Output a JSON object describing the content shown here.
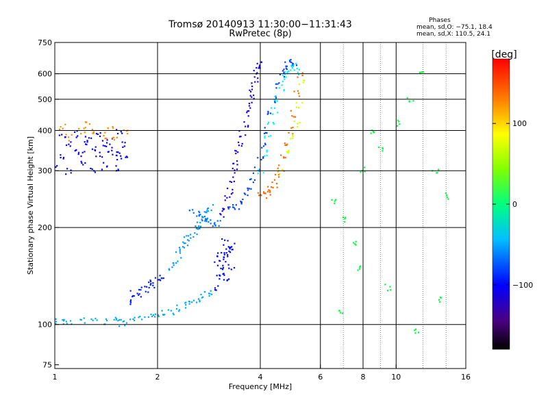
{
  "chart_data": {
    "type": "scatter",
    "title_line1": "Tromsø 20140913 11:30:00−11:31:43",
    "title_line2": "RwPretec (8p)",
    "annotation_title": "Phases",
    "annotation_o": "mean, sd,O: −75.1, 18.4",
    "annotation_x": "mean, sd,X: 110.5, 24.1",
    "xlabel": "Frequency [MHz]",
    "ylabel": "Stationary phase Virtual Height [km]",
    "x_scale": "log",
    "y_scale": "log",
    "xlim": [
      1,
      16
    ],
    "ylim": [
      73,
      750
    ],
    "x_ticks": [
      1,
      2,
      4,
      6,
      8,
      10,
      16
    ],
    "x_tick_labels": [
      "1",
      "2",
      "4",
      "6",
      "8",
      "10",
      "16"
    ],
    "x_gridlines": [
      2,
      4,
      6,
      8,
      10
    ],
    "x_minor_gridlines": [
      7,
      9,
      12,
      14
    ],
    "y_ticks": [
      75,
      100,
      200,
      300,
      400,
      500,
      600,
      750
    ],
    "y_tick_labels": [
      "75",
      "100",
      "200",
      "300",
      "400",
      "500",
      "600",
      "750"
    ],
    "y_gridlines": [
      100,
      200,
      300,
      400,
      500,
      600
    ],
    "grid": true,
    "colorbar": {
      "label": "[deg]",
      "range": [
        -180,
        180
      ],
      "ticks": [
        100,
        0,
        -100
      ],
      "tick_labels": [
        "100",
        "0",
        "−100"
      ],
      "colormap": "rainbow"
    },
    "series": [
      {
        "x": [
          1.0,
          1.05,
          1.1,
          1.2,
          1.3,
          1.4,
          1.5,
          1.55,
          1.6,
          1.7,
          1.8,
          1.9,
          2.0,
          2.1,
          2.2,
          2.3,
          2.4,
          2.5,
          2.6,
          2.7,
          2.8,
          2.9
        ],
        "y": [
          103,
          102,
          102,
          103,
          103,
          102,
          103,
          101,
          101,
          104,
          106,
          107,
          108,
          109,
          110,
          112,
          115,
          117,
          119,
          121,
          124,
          127
        ],
        "phase": [
          -60
        ]
      },
      {
        "x": [
          1.0,
          1.05,
          1.1,
          1.15,
          1.2,
          1.25,
          1.3,
          1.35,
          1.4,
          1.45,
          1.5,
          1.55,
          1.6,
          1.0,
          1.1,
          1.2,
          1.3,
          1.4,
          1.5,
          1.6,
          1.05,
          1.15,
          1.25,
          1.35,
          1.45,
          1.55
        ],
        "y": [
          350,
          330,
          360,
          345,
          340,
          370,
          355,
          335,
          365,
          350,
          330,
          340,
          360,
          310,
          300,
          320,
          300,
          310,
          305,
          330,
          380,
          390,
          375,
          385,
          370,
          395
        ],
        "phase": [
          -110
        ]
      },
      {
        "x": [
          1.0,
          1.1,
          1.2,
          1.3,
          1.4,
          1.5,
          1.6,
          1.05,
          1.25,
          1.45
        ],
        "y": [
          390,
          380,
          400,
          395,
          385,
          380,
          400,
          410,
          415,
          405
        ],
        "phase": [
          140
        ]
      },
      {
        "x": [
          1.65,
          1.75,
          1.85,
          1.95,
          2.05,
          1.7,
          1.8,
          1.9,
          2.0
        ],
        "y": [
          118,
          122,
          128,
          132,
          136,
          125,
          130,
          134,
          140
        ],
        "phase": [
          -100
        ]
      },
      {
        "x": [
          2.2,
          2.25,
          2.3,
          2.35,
          2.4,
          2.45,
          2.5,
          2.55,
          2.6,
          2.65,
          2.7,
          2.75,
          2.8,
          2.85
        ],
        "y": [
          150,
          158,
          165,
          172,
          178,
          185,
          190,
          195,
          200,
          206,
          212,
          218,
          224,
          230
        ],
        "phase": [
          -65
        ]
      },
      {
        "x": [
          2.5,
          2.6,
          2.7,
          2.75,
          2.8,
          2.9,
          3.0
        ],
        "y": [
          225,
          220,
          215,
          210,
          208,
          206,
          205
        ],
        "phase": [
          -75
        ]
      },
      {
        "x": [
          3.0,
          3.05,
          3.1,
          3.15,
          3.2,
          3.25,
          3.3,
          3.0,
          3.1,
          3.2,
          3.3,
          3.05,
          3.15,
          3.25
        ],
        "y": [
          130,
          140,
          150,
          160,
          165,
          170,
          175,
          155,
          145,
          135,
          150,
          165,
          180,
          170
        ],
        "phase": [
          -105
        ]
      },
      {
        "x": [
          3.1,
          3.15,
          3.2,
          3.25,
          3.3,
          3.35,
          3.4,
          3.45,
          3.5,
          3.55,
          3.6,
          3.65,
          3.7,
          3.75,
          3.8,
          3.85,
          3.9,
          3.95,
          4.0
        ],
        "y": [
          220,
          230,
          245,
          260,
          280,
          300,
          320,
          340,
          360,
          390,
          420,
          450,
          480,
          510,
          540,
          570,
          600,
          630,
          650
        ],
        "phase": [
          -115
        ]
      },
      {
        "x": [
          3.3,
          3.4,
          3.5,
          3.6,
          3.7,
          3.8,
          3.9,
          4.0,
          4.1,
          4.2,
          4.3,
          4.4,
          4.5,
          4.6,
          4.7,
          4.8,
          4.9,
          5.0
        ],
        "y": [
          230,
          232,
          240,
          250,
          265,
          280,
          300,
          330,
          360,
          400,
          450,
          500,
          550,
          600,
          620,
          640,
          650,
          640
        ],
        "phase": [
          -90
        ]
      },
      {
        "x": [
          4.0,
          4.1,
          4.2,
          4.3,
          4.4,
          4.5,
          4.6,
          4.7,
          4.8,
          4.9,
          5.0,
          5.1
        ],
        "y": [
          300,
          340,
          380,
          420,
          460,
          500,
          540,
          580,
          600,
          620,
          630,
          610
        ],
        "phase": [
          -40
        ]
      },
      {
        "x": [
          4.0,
          4.1,
          4.2,
          4.3,
          4.4,
          4.5,
          4.6,
          4.7,
          4.8,
          4.9,
          5.0,
          5.1,
          5.2
        ],
        "y": [
          255,
          252,
          256,
          262,
          270,
          285,
          305,
          330,
          360,
          400,
          450,
          520,
          600
        ],
        "phase": [
          150
        ]
      },
      {
        "x": [
          4.6,
          4.8,
          5.0,
          5.1,
          5.2,
          5.3
        ],
        "y": [
          300,
          340,
          380,
          420,
          480,
          560
        ],
        "phase": [
          95
        ]
      },
      {
        "x": [
          6.5,
          7.0,
          7.5,
          8.0,
          8.5,
          9.0,
          10.0,
          11.0,
          12.0,
          13.0,
          14.0,
          6.8,
          7.8,
          9.5,
          11.5,
          13.5
        ],
        "y": [
          240,
          210,
          180,
          300,
          400,
          350,
          420,
          500,
          600,
          300,
          250,
          110,
          150,
          130,
          95,
          120
        ],
        "phase": [
          20
        ]
      }
    ]
  }
}
